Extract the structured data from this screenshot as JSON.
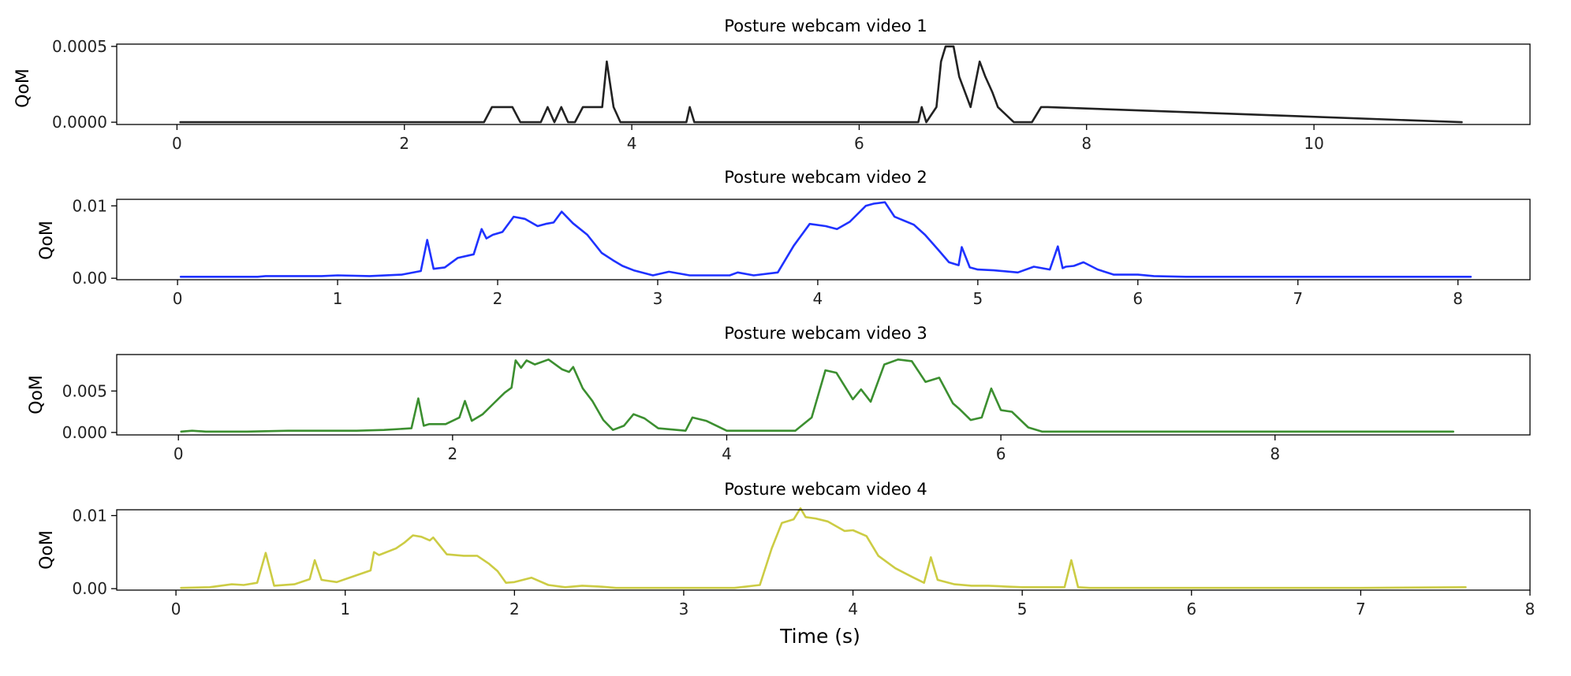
{
  "chart_data": [
    {
      "type": "line",
      "title": "Posture webcam video 1",
      "xlabel": "",
      "ylabel": "QoM",
      "xlim": [
        -0.53,
        11.9
      ],
      "ylim": [
        -1.5e-05,
        0.000515
      ],
      "x_ticks": [
        0,
        2,
        4,
        6,
        8,
        10
      ],
      "y_ticks": [
        0.0,
        0.0005
      ],
      "y_tick_labels": [
        "0.0000",
        "0.0005"
      ],
      "grid": false,
      "series": [
        {
          "color": "#222222",
          "x": [
            0.03,
            2.7,
            2.77,
            2.95,
            3.02,
            3.2,
            3.26,
            3.32,
            3.38,
            3.44,
            3.5,
            3.57,
            3.74,
            3.78,
            3.84,
            3.9,
            4.48,
            4.51,
            4.55,
            6.52,
            6.55,
            6.59,
            6.68,
            6.72,
            6.76,
            6.83,
            6.88,
            6.98,
            7.06,
            7.11,
            7.17,
            7.22,
            7.36,
            7.52,
            7.6,
            7.66,
            11.3
          ],
          "y": [
            0.0,
            0.0,
            0.0001,
            0.0001,
            0.0,
            0.0,
            0.0001,
            0.0,
            0.0001,
            0.0,
            0.0,
            0.0001,
            0.0001,
            0.0004,
            0.0001,
            0.0,
            0.0,
            0.0001,
            0.0,
            0.0,
            0.0001,
            0.0,
            0.0001,
            0.0004,
            0.0005,
            0.0005,
            0.0003,
            0.0001,
            0.0004,
            0.0003,
            0.0002,
            0.0001,
            0.0,
            0.0,
            0.0001,
            0.0001,
            0.0
          ]
        }
      ]
    },
    {
      "type": "line",
      "title": "Posture webcam video 2",
      "xlabel": "",
      "ylabel": "QoM",
      "xlim": [
        -0.38,
        8.45
      ],
      "ylim": [
        -0.0002,
        0.0109
      ],
      "x_ticks": [
        0,
        1,
        2,
        3,
        4,
        5,
        6,
        7,
        8
      ],
      "y_ticks": [
        0.0,
        0.01
      ],
      "y_tick_labels": [
        "0.00",
        "0.01"
      ],
      "grid": false,
      "series": [
        {
          "color": "#1f32ff",
          "x": [
            0.02,
            0.5,
            0.55,
            0.9,
            1.0,
            1.2,
            1.4,
            1.52,
            1.56,
            1.6,
            1.67,
            1.75,
            1.85,
            1.9,
            1.93,
            1.97,
            2.03,
            2.1,
            2.17,
            2.25,
            2.3,
            2.35,
            2.4,
            2.47,
            2.56,
            2.65,
            2.72,
            2.78,
            2.85,
            2.97,
            3.07,
            3.2,
            3.45,
            3.5,
            3.6,
            3.75,
            3.85,
            3.95,
            4.05,
            4.12,
            4.2,
            4.3,
            4.35,
            4.42,
            4.48,
            4.6,
            4.67,
            4.75,
            4.82,
            4.88,
            4.9,
            4.95,
            5.0,
            5.1,
            5.25,
            5.35,
            5.45,
            5.5,
            5.53,
            5.55,
            5.6,
            5.66,
            5.75,
            5.85,
            6.0,
            6.1,
            6.3,
            7.0,
            8.08
          ],
          "y": [
            0.0002,
            0.0002,
            0.0003,
            0.0003,
            0.0004,
            0.0003,
            0.0005,
            0.001,
            0.0053,
            0.0013,
            0.0015,
            0.0028,
            0.0033,
            0.0068,
            0.0055,
            0.006,
            0.0064,
            0.0085,
            0.0082,
            0.0072,
            0.0075,
            0.0077,
            0.0092,
            0.0076,
            0.006,
            0.0035,
            0.0025,
            0.0017,
            0.0011,
            0.0004,
            0.0009,
            0.0004,
            0.0004,
            0.0008,
            0.0004,
            0.0008,
            0.0045,
            0.0075,
            0.0072,
            0.0068,
            0.0078,
            0.01,
            0.0103,
            0.0105,
            0.0085,
            0.0074,
            0.006,
            0.004,
            0.0022,
            0.0018,
            0.0043,
            0.0015,
            0.0012,
            0.0011,
            0.0008,
            0.0016,
            0.0012,
            0.0044,
            0.0014,
            0.0016,
            0.0017,
            0.0022,
            0.0012,
            0.0005,
            0.0005,
            0.0003,
            0.0002,
            0.0002,
            0.0002
          ]
        }
      ]
    },
    {
      "type": "line",
      "title": "Posture webcam video 3",
      "xlabel": "",
      "ylabel": "QoM",
      "xlim": [
        -0.45,
        9.86
      ],
      "ylim": [
        -0.0003,
        0.0094
      ],
      "x_ticks": [
        0,
        2,
        4,
        6,
        8
      ],
      "y_ticks": [
        0.0,
        0.005
      ],
      "y_tick_labels": [
        "0.000",
        "0.005"
      ],
      "grid": false,
      "series": [
        {
          "color": "#3c8f30",
          "x": [
            0.02,
            0.1,
            0.2,
            0.5,
            0.8,
            1.3,
            1.5,
            1.7,
            1.75,
            1.79,
            1.83,
            1.95,
            2.05,
            2.09,
            2.14,
            2.22,
            2.3,
            2.38,
            2.43,
            2.46,
            2.5,
            2.54,
            2.6,
            2.7,
            2.8,
            2.85,
            2.88,
            2.95,
            3.02,
            3.1,
            3.17,
            3.25,
            3.32,
            3.4,
            3.5,
            3.7,
            3.75,
            3.85,
            4.0,
            4.2,
            4.5,
            4.62,
            4.72,
            4.8,
            4.92,
            4.98,
            5.05,
            5.15,
            5.25,
            5.35,
            5.45,
            5.55,
            5.65,
            5.7,
            5.78,
            5.86,
            5.93,
            6.0,
            6.08,
            6.2,
            6.3,
            6.6,
            8.0,
            8.5,
            9.3
          ],
          "y": [
            0.0001,
            0.0002,
            0.0001,
            0.0001,
            0.0002,
            0.0002,
            0.0003,
            0.0005,
            0.0041,
            0.0008,
            0.001,
            0.001,
            0.0018,
            0.0038,
            0.0014,
            0.0022,
            0.0035,
            0.0048,
            0.0054,
            0.0087,
            0.0078,
            0.0087,
            0.0082,
            0.0088,
            0.0076,
            0.0073,
            0.0079,
            0.0053,
            0.0038,
            0.0015,
            0.0003,
            0.0008,
            0.0022,
            0.0017,
            0.0005,
            0.0002,
            0.0018,
            0.0014,
            0.0002,
            0.0002,
            0.0002,
            0.0018,
            0.0075,
            0.0072,
            0.004,
            0.0052,
            0.0037,
            0.0082,
            0.0088,
            0.0086,
            0.0061,
            0.0066,
            0.0035,
            0.0028,
            0.0015,
            0.0018,
            0.0053,
            0.0027,
            0.0025,
            0.0006,
            0.0001,
            0.0001,
            0.0001,
            0.0001,
            0.0001
          ]
        }
      ]
    },
    {
      "type": "line",
      "title": "Posture webcam video 4",
      "xlabel": "Time (s)",
      "ylabel": "QoM",
      "xlim": [
        -0.35,
        8.0
      ],
      "ylim": [
        -0.0002,
        0.0108
      ],
      "x_ticks": [
        0,
        1,
        2,
        3,
        4,
        5,
        6,
        7,
        8
      ],
      "y_ticks": [
        0.0,
        0.01
      ],
      "y_tick_labels": [
        "0.00",
        "0.01"
      ],
      "grid": false,
      "series": [
        {
          "color": "#cccc44",
          "x": [
            0.03,
            0.2,
            0.33,
            0.4,
            0.48,
            0.53,
            0.58,
            0.7,
            0.79,
            0.82,
            0.86,
            0.95,
            1.05,
            1.15,
            1.17,
            1.2,
            1.3,
            1.35,
            1.4,
            1.45,
            1.5,
            1.52,
            1.6,
            1.7,
            1.78,
            1.85,
            1.9,
            1.95,
            2.0,
            2.05,
            2.1,
            2.2,
            2.3,
            2.4,
            2.5,
            2.6,
            3.0,
            3.3,
            3.45,
            3.52,
            3.58,
            3.65,
            3.69,
            3.72,
            3.78,
            3.85,
            3.95,
            4.0,
            4.08,
            4.15,
            4.25,
            4.35,
            4.42,
            4.46,
            4.5,
            4.6,
            4.7,
            4.8,
            4.9,
            5.0,
            5.25,
            5.29,
            5.33,
            5.4,
            6.0,
            7.0,
            7.62
          ],
          "y": [
            0.0001,
            0.0002,
            0.0006,
            0.0005,
            0.0008,
            0.0049,
            0.0004,
            0.0006,
            0.0013,
            0.0039,
            0.0012,
            0.0009,
            0.0017,
            0.0025,
            0.005,
            0.0046,
            0.0055,
            0.0063,
            0.0073,
            0.0071,
            0.0066,
            0.007,
            0.0047,
            0.0045,
            0.0045,
            0.0034,
            0.0024,
            0.0008,
            0.0009,
            0.0012,
            0.0015,
            0.0005,
            0.0002,
            0.0004,
            0.0003,
            0.0001,
            0.0001,
            0.0001,
            0.0005,
            0.0055,
            0.009,
            0.0095,
            0.011,
            0.0098,
            0.0096,
            0.0092,
            0.0079,
            0.008,
            0.0072,
            0.0045,
            0.0028,
            0.0016,
            0.0008,
            0.0043,
            0.0012,
            0.0006,
            0.0004,
            0.0004,
            0.0003,
            0.0002,
            0.0002,
            0.0039,
            0.0002,
            0.0001,
            0.0001,
            0.0001,
            0.0002
          ]
        }
      ]
    }
  ]
}
